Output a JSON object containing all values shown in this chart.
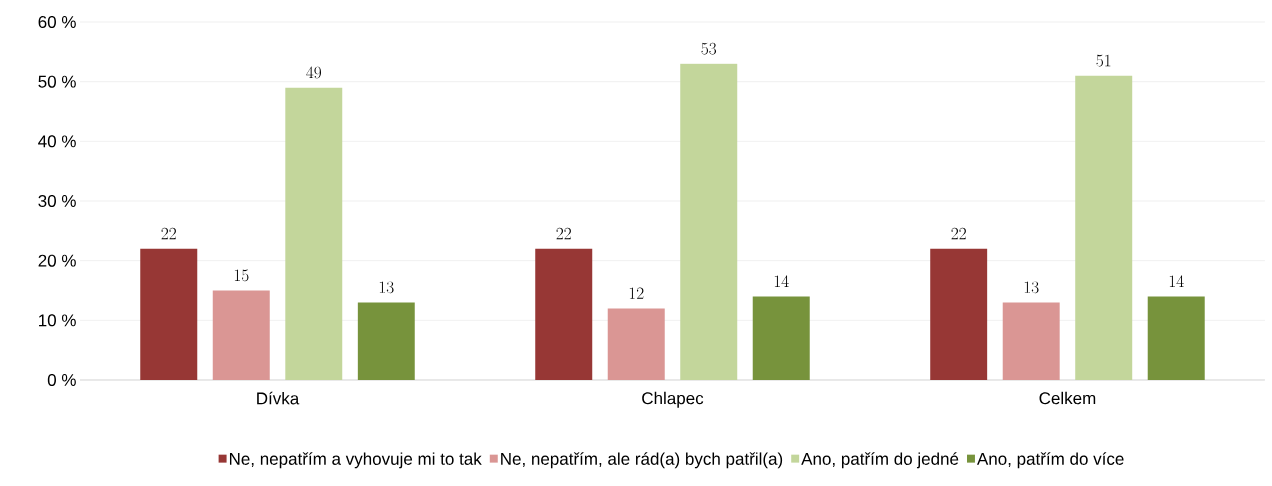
{
  "chart_data": {
    "type": "bar",
    "categories": [
      "Dívka",
      "Chlapec",
      "Celkem"
    ],
    "series": [
      {
        "name": "Ne, nepatřím a vyhovuje mi to tak",
        "color": "#973735",
        "values": [
          22,
          22,
          22
        ]
      },
      {
        "name": "Ne, nepatřím, ale rád(a) bych patřil(a)",
        "color": "#da9694",
        "values": [
          15,
          12,
          13
        ]
      },
      {
        "name": "Ano, patřím do jedné",
        "color": "#c3d69b",
        "values": [
          49,
          53,
          51
        ]
      },
      {
        "name": "Ano, patřím do více",
        "color": "#77933c",
        "values": [
          13,
          14,
          14
        ]
      }
    ],
    "ylim": [
      0,
      60
    ],
    "yticks": [
      {
        "value": 0,
        "label": "0 %"
      },
      {
        "value": 10,
        "label": "10 %"
      },
      {
        "value": 20,
        "label": "20 %"
      },
      {
        "value": 30,
        "label": "30 %"
      },
      {
        "value": 40,
        "label": "40 %"
      },
      {
        "value": 50,
        "label": "50 %"
      },
      {
        "value": 60,
        "label": "60 %"
      }
    ],
    "grid": "y",
    "legend": "bottom",
    "data_labels": true
  }
}
